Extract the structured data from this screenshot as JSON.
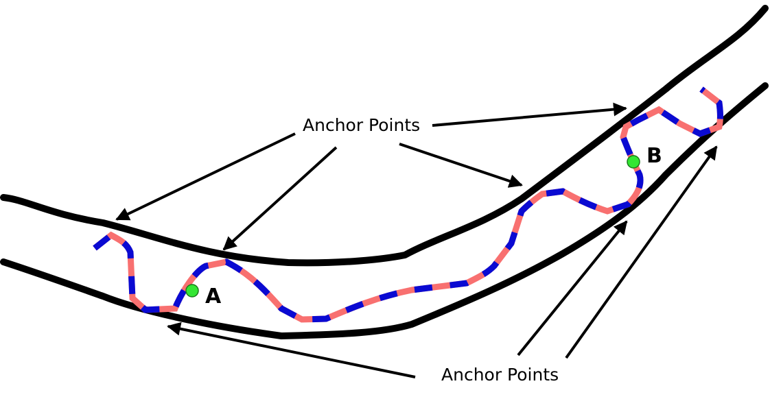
{
  "labels": {
    "anchor_points_top": "Anchor Points",
    "anchor_points_bottom": "Anchor Points",
    "point_a": "A",
    "point_b": "B"
  },
  "colors": {
    "boundary": "#000000",
    "path_dash_red": "#f87070",
    "path_dash_blue": "#0a0ad2",
    "point_fill": "#33e633"
  }
}
